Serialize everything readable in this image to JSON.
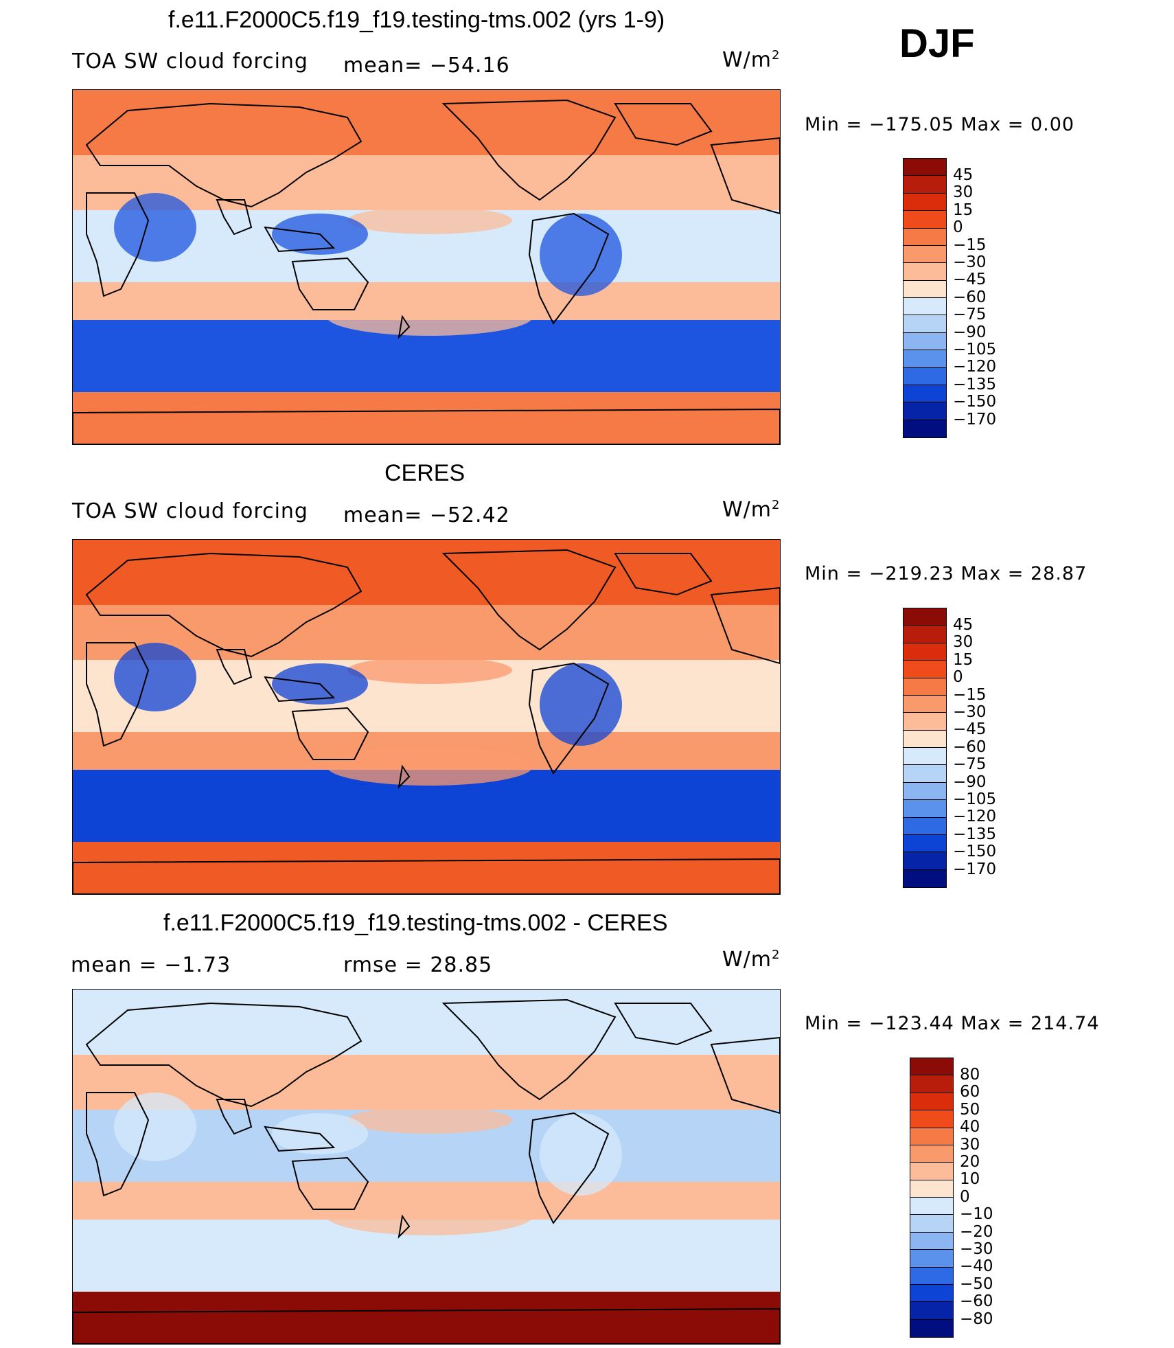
{
  "season": "DJF",
  "units_prefix": "W/m",
  "units_sup": "2",
  "panels": [
    {
      "title": "f.e11.F2000C5.f19_f19.testing-tms.002 (yrs 1-9)",
      "left_label": "TOA SW cloud forcing",
      "center_label": "mean= −54.16",
      "minmax": "Min = −175.05 Max =    0.00",
      "colorbar_labels": [
        "45",
        "30",
        "15",
        "0",
        "−15",
        "−30",
        "−45",
        "−60",
        "−75",
        "−90",
        "−105",
        "−120",
        "−135",
        "−150",
        "−170"
      ],
      "colorbar_colors": [
        "#8b0b06",
        "#b81c0b",
        "#db2d0c",
        "#f04b1a",
        "#f57a45",
        "#f99a6d",
        "#fcbc9a",
        "#fde4cf",
        "#d6eafb",
        "#b6d4f6",
        "#8bb6f2",
        "#5a92ec",
        "#2e6ae4",
        "#0e44d6",
        "#0524a8",
        "#000e80"
      ],
      "map_fill": {
        "north": "#f57a45",
        "mid_north": "#fcbc9a",
        "tropics": "#d6eafb",
        "south_storm": "#1e55e0",
        "antarctic": "#f57a45"
      }
    },
    {
      "title": "CERES",
      "left_label": "TOA SW cloud forcing",
      "center_label": "mean= −52.42",
      "minmax": "Min = −219.23 Max =   28.87",
      "colorbar_labels": [
        "45",
        "30",
        "15",
        "0",
        "−15",
        "−30",
        "−45",
        "−60",
        "−75",
        "−90",
        "−105",
        "−120",
        "−135",
        "−150",
        "−170"
      ],
      "colorbar_colors": [
        "#8b0b06",
        "#b81c0b",
        "#db2d0c",
        "#f04b1a",
        "#f57a45",
        "#f99a6d",
        "#fcbc9a",
        "#fde4cf",
        "#d6eafb",
        "#b6d4f6",
        "#8bb6f2",
        "#5a92ec",
        "#2e6ae4",
        "#0e44d6",
        "#0524a8",
        "#000e80"
      ],
      "map_fill": {
        "north": "#f05a25",
        "mid_north": "#f99a6d",
        "tropics": "#fde4cf",
        "south_storm": "#0e44d6",
        "antarctic": "#f05a25"
      }
    },
    {
      "title": "f.e11.F2000C5.f19_f19.testing-tms.002 - CERES",
      "left_label": "mean =   −1.73",
      "center_label": "rmse =   28.85",
      "minmax": "Min = −123.44 Max = 214.74",
      "colorbar_labels": [
        "80",
        "60",
        "50",
        "40",
        "30",
        "20",
        "10",
        "0",
        "−10",
        "−20",
        "−30",
        "−40",
        "−50",
        "−60",
        "−80"
      ],
      "colorbar_colors": [
        "#8b0b06",
        "#b81c0b",
        "#db2d0c",
        "#f04b1a",
        "#f57a45",
        "#f99a6d",
        "#fcbc9a",
        "#fde4cf",
        "#d6eafb",
        "#b6d4f6",
        "#8bb6f2",
        "#5a92ec",
        "#2e6ae4",
        "#0e44d6",
        "#0524a8",
        "#000e80"
      ],
      "map_fill": {
        "north": "#d6eafb",
        "mid_north": "#fcbc9a",
        "tropics": "#b6d4f6",
        "south_storm": "#d6eafb",
        "antarctic": "#8b0b06"
      }
    }
  ]
}
